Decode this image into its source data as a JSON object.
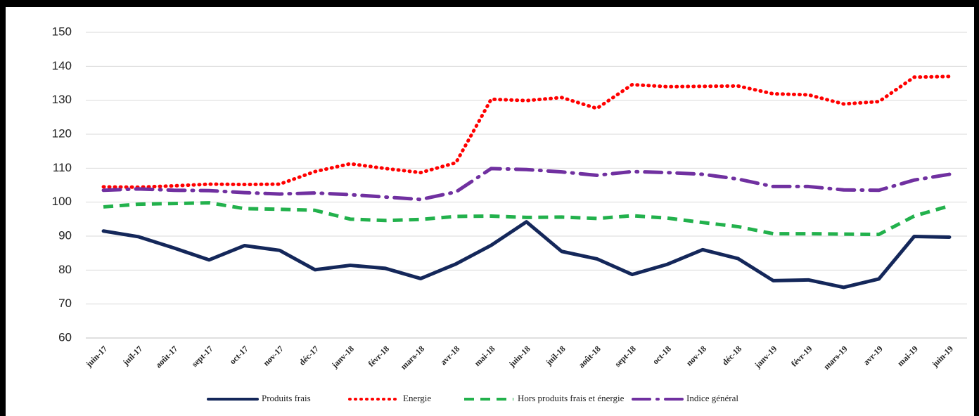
{
  "chart_data": {
    "type": "line",
    "categories": [
      "juin-17",
      "juil-17",
      "août-17",
      "sept-17",
      "oct-17",
      "nov-17",
      "déc-17",
      "janv-18",
      "févr-18",
      "mars-18",
      "avr-18",
      "mai-18",
      "juin-18",
      "juil-18",
      "août-18",
      "sept-18",
      "oct-18",
      "nov-18",
      "déc-18",
      "janv-19",
      "févr-19",
      "mars-19",
      "avr-19",
      "mai-19",
      "juin-19"
    ],
    "series": [
      {
        "name": "Produits frais",
        "color": "#14275a",
        "values": [
          91.5,
          89.8,
          86.5,
          83,
          87.2,
          85.8,
          80.1,
          81.4,
          80.5,
          77.5,
          81.8,
          87.3,
          94.2,
          85.5,
          83.3,
          78.7,
          81.7,
          86,
          83.4,
          76.9,
          77.1,
          74.9,
          77.4,
          89.9,
          89.7
        ]
      },
      {
        "name": "Energie",
        "color": "#ff0000",
        "values": [
          104.5,
          104.4,
          104.8,
          105.3,
          105.2,
          105.3,
          109,
          111.3,
          109.9,
          108.7,
          111.6,
          130.3,
          129.9,
          130.8,
          127.6,
          134.6,
          134,
          134.1,
          134.2,
          131.9,
          131.6,
          128.9,
          129.6,
          136.8,
          137
        ]
      },
      {
        "name": "Hors produits frais et énergie",
        "color": "#22b14c",
        "values": [
          98.6,
          99.4,
          99.6,
          99.8,
          98.1,
          97.9,
          97.6,
          95,
          94.6,
          94.9,
          95.8,
          95.9,
          95.5,
          95.6,
          95.2,
          96,
          95.3,
          94,
          92.8,
          90.7,
          90.7,
          90.6,
          90.5,
          95.9,
          98.9
        ]
      },
      {
        "name": "Indice général",
        "color": "#7030a0",
        "values": [
          103.5,
          103.9,
          103.5,
          103.4,
          102.8,
          102.4,
          102.7,
          102.2,
          101.5,
          100.8,
          103,
          109.9,
          109.6,
          108.9,
          107.9,
          109,
          108.7,
          108.2,
          106.8,
          104.6,
          104.6,
          103.6,
          103.5,
          106.5,
          108.2
        ]
      }
    ],
    "ylim": [
      60,
      150
    ],
    "yticks": [
      60,
      70,
      80,
      90,
      100,
      110,
      120,
      130,
      140,
      150
    ],
    "grid": true,
    "legend": "bottom"
  }
}
